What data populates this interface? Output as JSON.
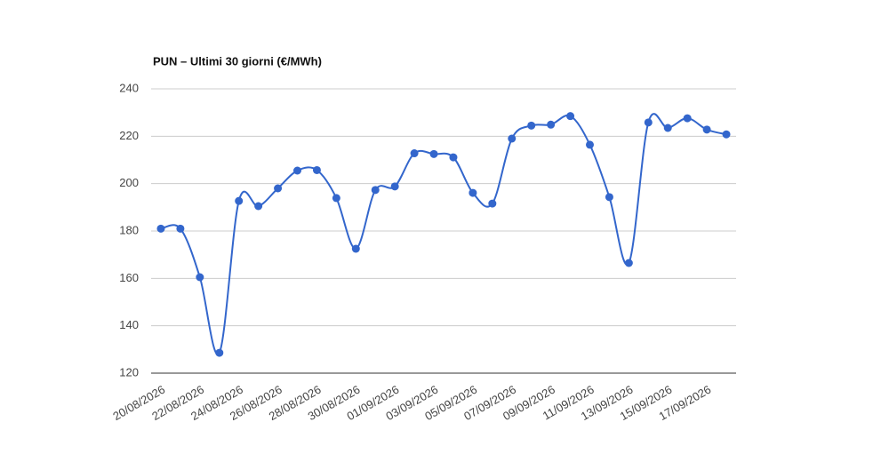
{
  "chart_data": {
    "type": "line",
    "title": "PUN – Ultimi 30 giorni (€/MWh)",
    "categories": [
      "20/08/2026",
      null,
      "22/08/2026",
      null,
      "24/08/2026",
      null,
      "26/08/2026",
      null,
      "28/08/2026",
      null,
      "30/08/2026",
      null,
      "01/09/2026",
      null,
      "03/09/2026",
      null,
      "05/09/2026",
      null,
      "07/09/2026",
      null,
      "09/09/2026",
      null,
      "11/09/2026",
      null,
      "13/09/2026",
      null,
      "15/09/2026",
      null,
      "17/09/2026",
      null
    ],
    "series": [
      {
        "name": "PUN",
        "color": "#3366cc",
        "values": [
          181,
          181,
          160.5,
          128.6,
          192.7,
          190.5,
          198,
          205.5,
          205.7,
          193.9,
          172.5,
          197.3,
          198.8,
          212.8,
          212.5,
          211.1,
          196.1,
          191.6,
          219,
          224.5,
          224.9,
          228.5,
          216.4,
          194.3,
          166.5,
          225.8,
          223.5,
          227.6,
          222.8,
          220.8
        ]
      }
    ],
    "ylim": [
      120,
      240
    ],
    "yticks": [
      120,
      140,
      160,
      180,
      200,
      220,
      240
    ],
    "grid": true
  }
}
